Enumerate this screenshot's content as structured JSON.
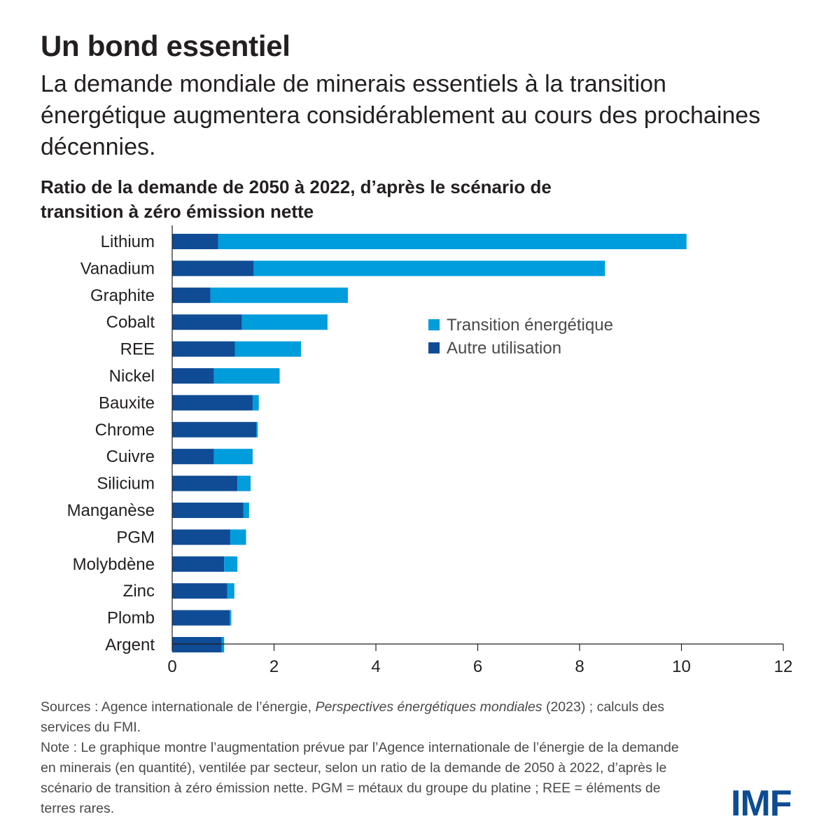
{
  "header": {
    "title": "Un bond essentiel",
    "subtitle": "La demande mondiale de minerais essentiels à la transition énergétique augmentera considérablement au cours des prochaines décennies."
  },
  "chart_data": {
    "type": "bar",
    "orientation": "horizontal",
    "stacked": true,
    "title": "Ratio de la demande de 2050 à 2022, d’après le scénario de transition à zéro émission nette",
    "categories": [
      "Lithium",
      "Vanadium",
      "Graphite",
      "Cobalt",
      "REE",
      "Nickel",
      "Bauxite",
      "Chrome",
      "Cuivre",
      "Silicium",
      "Manganèse",
      "PGM",
      "Molybdène",
      "Zinc",
      "Plomb",
      "Argent"
    ],
    "series": [
      {
        "name": "Autre utilisation",
        "color": "#0f4c95",
        "values": [
          0.9,
          1.6,
          0.75,
          1.37,
          1.23,
          0.82,
          1.58,
          1.65,
          0.82,
          1.28,
          1.4,
          1.14,
          1.02,
          1.08,
          1.13,
          0.97
        ]
      },
      {
        "name": "Transition énergétique",
        "color": "#009ddc",
        "values": [
          9.2,
          6.9,
          2.7,
          1.68,
          1.3,
          1.29,
          0.12,
          0.03,
          0.76,
          0.26,
          0.11,
          0.31,
          0.26,
          0.14,
          0.03,
          0.05
        ]
      }
    ],
    "xlim": [
      0,
      12
    ],
    "xticks": [
      0,
      2,
      4,
      6,
      8,
      10,
      12
    ],
    "legend_position": "right-upper",
    "legend": [
      "Transition énergétique",
      "Autre utilisation"
    ]
  },
  "footer": {
    "sources_prefix": "Sources : Agence internationale de l’énergie, ",
    "sources_italic": "Perspectives énergétiques mondiales",
    "sources_suffix": " (2023) ; calculs des services du FMI.",
    "note": "Note : Le graphique montre l’augmentation prévue par l’Agence internationale de l’énergie de la demande en minerais (en quantité), ventilée par secteur, selon un ratio de la demande de 2050 à 2022, d’après le scénario de transition à zéro émission nette. PGM = métaux du groupe du platine ; REE = éléments de terres rares."
  },
  "logo": {
    "text": "IMF"
  }
}
